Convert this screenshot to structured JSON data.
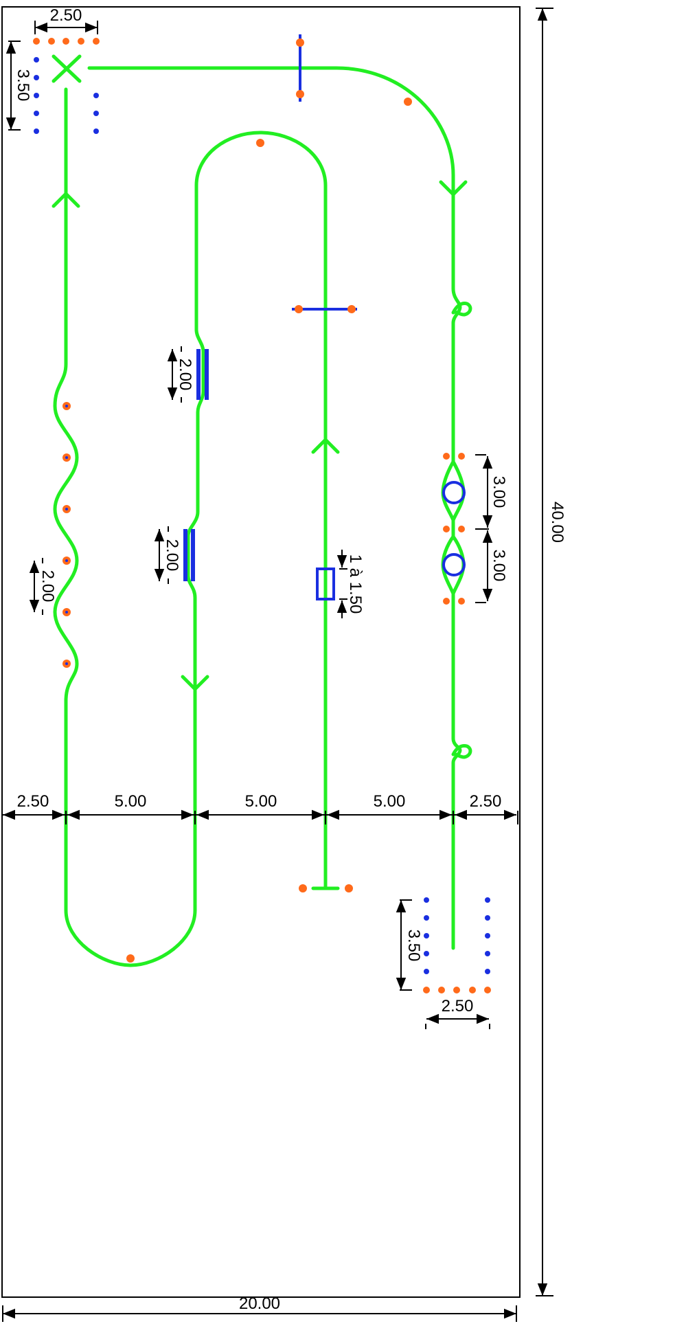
{
  "dimensions": {
    "total_width": "20.00",
    "total_length": "40.00",
    "col_gap_left": "2.50",
    "col_gap_1": "5.00",
    "col_gap_2": "5.00",
    "col_gap_3": "5.00",
    "col_gap_right": "2.50",
    "start_box_width": "2.50",
    "start_box_depth": "3.50",
    "end_box_width": "2.50",
    "end_box_depth": "3.50",
    "slalom_spacing": "2.00",
    "narrow_gate_1": "2.00",
    "narrow_gate_2": "2.00",
    "plank_length": "1 à 1.50",
    "circle_zone_1": "3.00",
    "circle_zone_2": "3.00"
  },
  "colors": {
    "track": "#22ee22",
    "cones": "#ff6a1a",
    "obstacles": "#1a2fe0",
    "dimension_lines": "#000000"
  }
}
